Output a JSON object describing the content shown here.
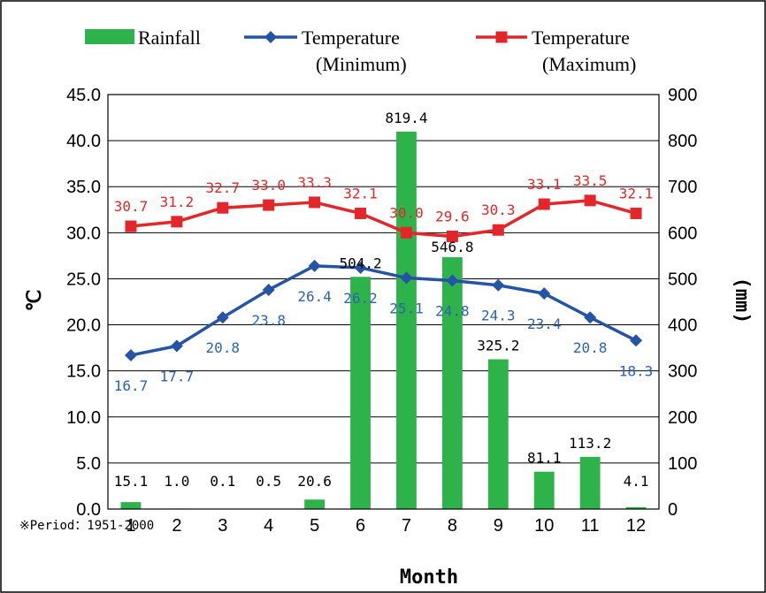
{
  "chart_data": {
    "type": "bar+line",
    "categories": [
      "1",
      "2",
      "3",
      "4",
      "5",
      "6",
      "7",
      "8",
      "9",
      "10",
      "11",
      "12"
    ],
    "series": [
      {
        "name": "Rainfall",
        "kind": "bar",
        "axis": "right",
        "color": "#2eb34a",
        "values": [
          15.1,
          1.0,
          0.1,
          0.5,
          20.6,
          504.2,
          819.4,
          546.8,
          325.2,
          81.1,
          113.2,
          4.1
        ]
      },
      {
        "name": "Temperature\n(Minimum)",
        "legend_lines": [
          "Temperature",
          "(Minimum)"
        ],
        "kind": "line",
        "axis": "left",
        "color": "#2553a6",
        "label_color": "#2e62b3",
        "marker": "diamond",
        "values": [
          16.7,
          17.7,
          20.8,
          23.8,
          26.4,
          26.2,
          25.1,
          24.8,
          24.3,
          23.4,
          20.8,
          18.3
        ]
      },
      {
        "name": "Temperature\n(Maximum)",
        "legend_lines": [
          "Temperature",
          "(Maximum)"
        ],
        "kind": "line",
        "axis": "left",
        "color": "#e3262a",
        "label_color": "#e3262a",
        "marker": "square",
        "values": [
          30.7,
          31.2,
          32.7,
          33.0,
          33.3,
          32.1,
          30.0,
          29.6,
          30.3,
          33.1,
          33.5,
          32.1
        ]
      }
    ],
    "xlabel": "Month",
    "ylabel_left": "℃",
    "ylabel_right": "(mm)",
    "ylim_left": [
      0,
      45
    ],
    "ylim_right": [
      0,
      900
    ],
    "yticks_left": [
      "0.0",
      "5.0",
      "10.0",
      "15.0",
      "20.0",
      "25.0",
      "30.0",
      "35.0",
      "40.0",
      "45.0"
    ],
    "yticks_right": [
      "0",
      "100",
      "200",
      "300",
      "400",
      "500",
      "600",
      "700",
      "800",
      "900"
    ],
    "grid": true,
    "legend_position": "top",
    "annotation": "※Period：1951-2000"
  }
}
